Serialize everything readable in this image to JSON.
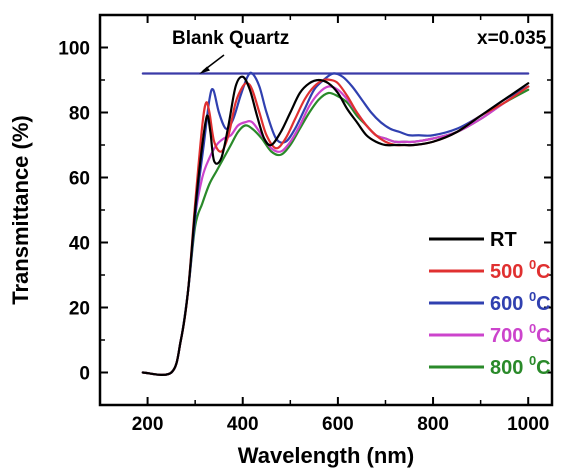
{
  "chart_data": {
    "type": "line",
    "xlabel": "Wavelength (nm)",
    "ylabel": "Transmittance (%)",
    "xlim": [
      100,
      1050
    ],
    "ylim": [
      -10,
      110
    ],
    "xticks": [
      200,
      400,
      600,
      800,
      1000
    ],
    "yticks": [
      0,
      20,
      40,
      60,
      80,
      100
    ],
    "xtick_labels": [
      "200",
      "400",
      "600",
      "800",
      "1000"
    ],
    "ytick_labels": [
      "0",
      "20",
      "40",
      "60",
      "80",
      "100"
    ],
    "grid": false,
    "legend_position": "bottom-right",
    "annotations": {
      "blank_quartz": "Blank Quartz",
      "composition": "x=0.035"
    },
    "series": [
      {
        "name": "Blank Quartz",
        "color": "#3a3aa8",
        "show_in_legend": false,
        "x": [
          190,
          1000
        ],
        "y": [
          92,
          92
        ]
      },
      {
        "name": "RT",
        "legend_main": "RT",
        "legend_sup": "",
        "legend_tail": "",
        "color": "#000000",
        "show_in_legend": true,
        "x": [
          190,
          250,
          270,
          285,
          300,
          315,
          325,
          332,
          340,
          355,
          370,
          385,
          400,
          415,
          430,
          445,
          460,
          480,
          500,
          520,
          540,
          560,
          580,
          600,
          620,
          640,
          660,
          680,
          700,
          720,
          740,
          760,
          800,
          850,
          900,
          950,
          1000
        ],
        "y": [
          0,
          0,
          10,
          25,
          50,
          70,
          79,
          74,
          65,
          66,
          76,
          88,
          91,
          87,
          79,
          72,
          70,
          74,
          80,
          86,
          89,
          90,
          89,
          86,
          81,
          77,
          73,
          71,
          70,
          70,
          70,
          70,
          71,
          74,
          79,
          84,
          89
        ]
      },
      {
        "name": "500 °C",
        "legend_main": "500 ",
        "legend_sup": "0",
        "legend_tail": "C",
        "color": "#e03030",
        "show_in_legend": true,
        "x": [
          190,
          250,
          270,
          285,
          300,
          315,
          323,
          330,
          340,
          355,
          370,
          385,
          400,
          410,
          420,
          435,
          450,
          470,
          490,
          510,
          530,
          550,
          570,
          585,
          600,
          620,
          640,
          660,
          680,
          700,
          720,
          740,
          760,
          800,
          850,
          900,
          950,
          1000
        ],
        "y": [
          0,
          0,
          10,
          25,
          52,
          76,
          83,
          80,
          71,
          68,
          73,
          83,
          88,
          89,
          87,
          80,
          73,
          69,
          72,
          78,
          84,
          88,
          90,
          90,
          89,
          85,
          80,
          76,
          73,
          71,
          70,
          70,
          70,
          71,
          74,
          79,
          83,
          88
        ]
      },
      {
        "name": "600 °C",
        "legend_main": "600 ",
        "legend_sup": "0",
        "legend_tail": "C",
        "color": "#3040b0",
        "show_in_legend": true,
        "x": [
          190,
          250,
          270,
          285,
          295,
          305,
          318,
          330,
          338,
          350,
          365,
          380,
          395,
          410,
          420,
          435,
          450,
          470,
          490,
          510,
          530,
          550,
          570,
          590,
          610,
          630,
          650,
          670,
          690,
          710,
          730,
          750,
          770,
          800,
          850,
          900,
          950,
          1000
        ],
        "y": [
          0,
          0,
          10,
          25,
          40,
          55,
          70,
          84,
          87,
          80,
          75,
          78,
          85,
          91,
          92,
          88,
          80,
          72,
          71,
          75,
          81,
          87,
          90,
          92,
          91,
          88,
          84,
          80,
          77,
          75,
          74,
          73,
          73,
          73,
          75,
          79,
          84,
          88
        ]
      },
      {
        "name": "700 °C",
        "legend_main": "700 ",
        "legend_sup": "0",
        "legend_tail": "C",
        "color": "#cc44cc",
        "show_in_legend": true,
        "x": [
          190,
          250,
          270,
          285,
          300,
          315,
          330,
          345,
          360,
          375,
          390,
          405,
          420,
          440,
          460,
          480,
          500,
          520,
          540,
          560,
          580,
          600,
          620,
          640,
          660,
          680,
          700,
          720,
          740,
          760,
          800,
          850,
          900,
          950,
          1000
        ],
        "y": [
          0,
          0,
          10,
          25,
          48,
          60,
          66,
          70,
          72,
          73,
          76,
          77,
          77,
          73,
          69,
          68,
          71,
          76,
          82,
          86,
          88,
          87,
          84,
          80,
          76,
          73,
          72,
          71,
          71,
          71,
          72,
          74,
          78,
          83,
          88
        ]
      },
      {
        "name": "800 °C",
        "legend_main": "800 ",
        "legend_sup": "0",
        "legend_tail": "C",
        "color": "#2a8a2a",
        "show_in_legend": true,
        "x": [
          190,
          250,
          270,
          285,
          300,
          315,
          330,
          345,
          360,
          375,
          390,
          405,
          420,
          440,
          460,
          480,
          500,
          520,
          540,
          560,
          580,
          600,
          620,
          640,
          660,
          680,
          700,
          720,
          740,
          760,
          800,
          850,
          900,
          950,
          1000
        ],
        "y": [
          0,
          0,
          10,
          25,
          45,
          52,
          58,
          62,
          66,
          70,
          74,
          76,
          75,
          72,
          68,
          67,
          70,
          75,
          80,
          84,
          86,
          85,
          83,
          79,
          76,
          73,
          72,
          71,
          71,
          71,
          72,
          74,
          78,
          83,
          87
        ]
      }
    ]
  }
}
